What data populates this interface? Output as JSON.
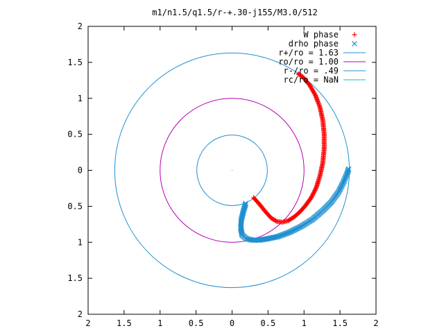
{
  "chart_data": {
    "type": "scatter",
    "title": "m1/n1.5/q1.5/r-+.30-j155/M3.0/512",
    "xlabel": "",
    "ylabel": "",
    "xlim": [
      -2,
      2
    ],
    "ylim": [
      -2,
      2
    ],
    "grid": false,
    "legend_position": "top-right",
    "x_ticks": [
      -2,
      -1.5,
      -1,
      -0.5,
      0,
      0.5,
      1,
      1.5,
      2
    ],
    "x_tick_labels": [
      "2",
      "1.5",
      "1",
      "0.5",
      "0",
      "0.5",
      "1",
      "1.5",
      "2"
    ],
    "y_ticks": [
      2,
      1.5,
      1,
      0.5,
      0,
      -0.5,
      -1,
      -1.5,
      -2
    ],
    "y_tick_labels": [
      "2",
      "1.5",
      "1",
      "0.5",
      "0",
      "0.5",
      "1",
      "1.5",
      "2"
    ],
    "circles": [
      {
        "legend": "r+/ro = 1.63",
        "radius": 1.63,
        "color": "#1f8fd0"
      },
      {
        "legend": "ro/ro = 1.00",
        "radius": 1.0,
        "color": "#b400b4"
      },
      {
        "legend": "r-/ro = .49",
        "radius": 0.49,
        "color": "#1f8fd0"
      },
      {
        "legend": "rc/ro = NaN",
        "radius": null,
        "color": "#00c8c8"
      }
    ],
    "series": [
      {
        "name": "W phase",
        "marker": "+",
        "color": "#ff0000",
        "x": [
          0.3,
          0.38,
          0.46,
          0.54,
          0.62,
          0.7,
          0.78,
          0.86,
          0.94,
          1.02,
          1.1,
          1.17,
          1.22,
          1.26,
          1.28,
          1.28,
          1.26,
          1.22,
          1.16,
          1.08,
          0.98,
          0.92
        ],
        "y": [
          -0.38,
          -0.47,
          -0.57,
          -0.66,
          -0.71,
          -0.72,
          -0.7,
          -0.65,
          -0.58,
          -0.49,
          -0.38,
          -0.24,
          -0.08,
          0.1,
          0.3,
          0.5,
          0.7,
          0.88,
          1.04,
          1.18,
          1.3,
          1.34
        ]
      },
      {
        "name": "drho phase",
        "marker": "x",
        "color": "#1f8fd0",
        "x": [
          0.19,
          0.16,
          0.13,
          0.12,
          0.14,
          0.2,
          0.28,
          0.38,
          0.5,
          0.64,
          0.8,
          0.96,
          1.12,
          1.26,
          1.38,
          1.48,
          1.55,
          1.6,
          1.62
        ],
        "y": [
          -0.46,
          -0.56,
          -0.68,
          -0.8,
          -0.9,
          -0.95,
          -0.97,
          -0.97,
          -0.95,
          -0.92,
          -0.86,
          -0.78,
          -0.68,
          -0.56,
          -0.44,
          -0.3,
          -0.16,
          -0.04,
          0.02
        ]
      }
    ]
  }
}
